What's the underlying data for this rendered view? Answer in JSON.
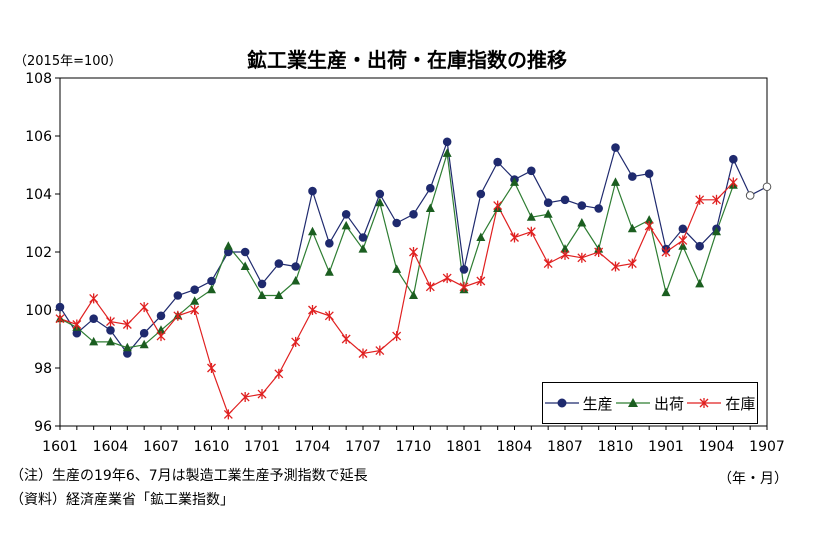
{
  "title": "鉱工業生産・出荷・在庫指数の推移",
  "unit_label": "（2015年=100）",
  "x_unit_label": "（年・月）",
  "notes": [
    "（注）生産の19年6、7月は製造工業生産予測指数で延長",
    "（資料）経済産業省「鉱工業指数」"
  ],
  "chart_data": {
    "type": "line",
    "title": "鉱工業生産・出荷・在庫指数の推移",
    "ylabel": "（2015年=100）",
    "xlabel": "（年・月）",
    "ylim": [
      96,
      108
    ],
    "yticks": [
      96,
      98,
      100,
      102,
      104,
      106,
      108
    ],
    "xticks": [
      "1601",
      "1604",
      "1607",
      "1610",
      "1701",
      "1704",
      "1707",
      "1710",
      "1801",
      "1804",
      "1807",
      "1810",
      "1901",
      "1904",
      "1907"
    ],
    "x": [
      "1601",
      "1602",
      "1603",
      "1604",
      "1605",
      "1606",
      "1607",
      "1608",
      "1609",
      "1610",
      "1611",
      "1612",
      "1701",
      "1702",
      "1703",
      "1704",
      "1705",
      "1706",
      "1707",
      "1708",
      "1709",
      "1710",
      "1711",
      "1712",
      "1801",
      "1802",
      "1803",
      "1804",
      "1805",
      "1806",
      "1807",
      "1808",
      "1809",
      "1810",
      "1811",
      "1812",
      "1901",
      "1902",
      "1903",
      "1904",
      "1905",
      "1906",
      "1907"
    ],
    "grid": false,
    "legend_position": "bottom-right",
    "series": [
      {
        "name": "生産",
        "color": "#1f2a6e",
        "marker": "circle",
        "values": [
          100.1,
          99.2,
          99.7,
          99.3,
          98.5,
          99.2,
          99.8,
          100.5,
          100.7,
          101.0,
          102.0,
          102.0,
          100.9,
          101.6,
          101.5,
          104.1,
          102.3,
          103.3,
          102.5,
          104.0,
          103.0,
          103.3,
          104.2,
          105.8,
          101.4,
          104.0,
          105.1,
          104.5,
          104.8,
          103.7,
          103.8,
          103.6,
          103.5,
          105.6,
          104.6,
          104.7,
          102.1,
          102.8,
          102.2,
          102.8,
          105.2,
          103.95,
          104.25
        ],
        "forecast_points": [
          "1906",
          "1907"
        ]
      },
      {
        "name": "出荷",
        "color": "#2e7d32",
        "marker": "triangle",
        "values": [
          99.7,
          99.4,
          98.9,
          98.9,
          98.7,
          98.8,
          99.3,
          99.8,
          100.3,
          100.7,
          102.2,
          101.5,
          100.5,
          100.5,
          101.0,
          102.7,
          101.3,
          102.9,
          102.1,
          103.7,
          101.4,
          100.5,
          103.5,
          105.4,
          100.7,
          102.5,
          103.5,
          104.4,
          103.2,
          103.3,
          102.1,
          103.0,
          102.1,
          104.4,
          102.8,
          103.1,
          100.6,
          102.2,
          100.9,
          102.7,
          104.3,
          null,
          null
        ]
      },
      {
        "name": "在庫",
        "color": "#e02020",
        "marker": "asterisk",
        "values": [
          99.7,
          99.5,
          100.4,
          99.6,
          99.5,
          100.1,
          99.1,
          99.8,
          100.0,
          98.0,
          96.4,
          97.0,
          97.1,
          97.8,
          98.9,
          100.0,
          99.8,
          99.0,
          98.5,
          98.6,
          99.1,
          102.0,
          100.8,
          101.1,
          100.8,
          101.0,
          103.6,
          102.5,
          102.7,
          101.6,
          101.9,
          101.8,
          102.0,
          101.5,
          101.6,
          102.9,
          102.0,
          102.4,
          103.8,
          103.8,
          104.4,
          null,
          null
        ]
      }
    ]
  }
}
